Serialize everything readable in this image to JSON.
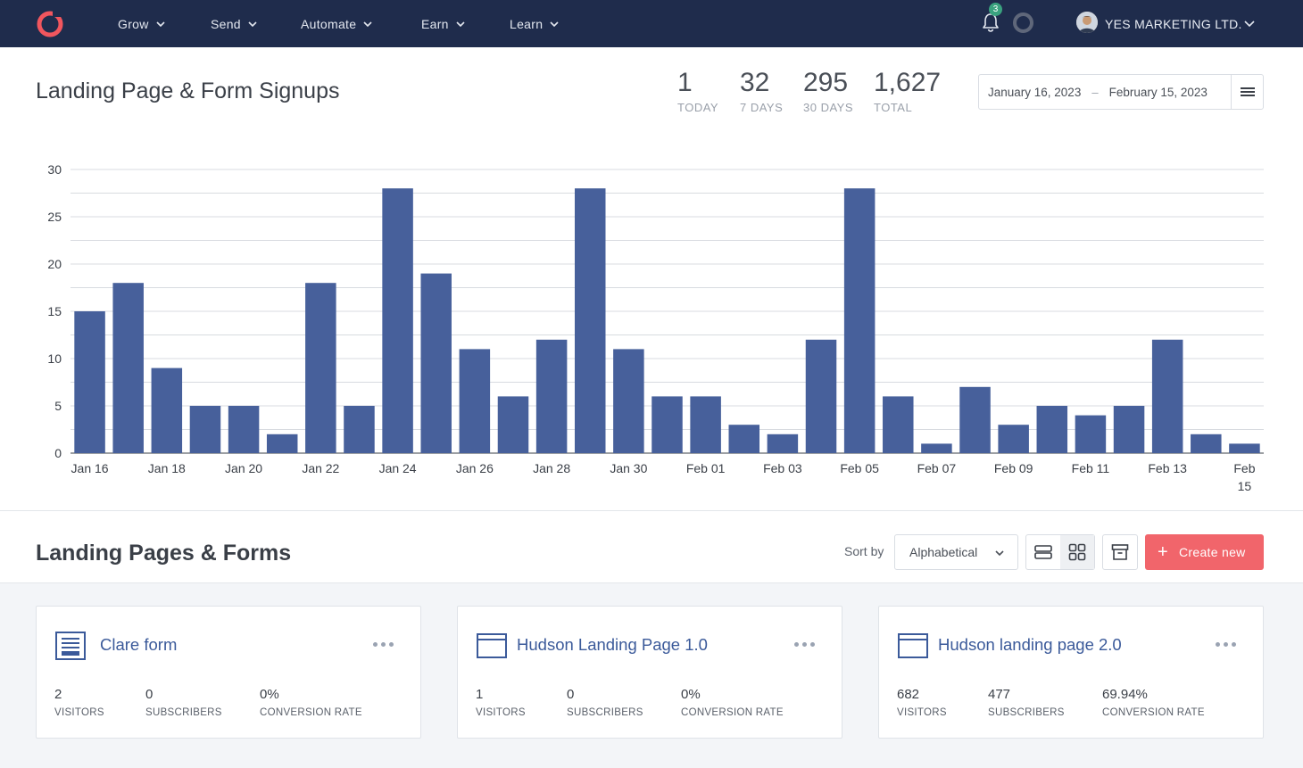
{
  "nav": {
    "items": [
      {
        "label": "Grow"
      },
      {
        "label": "Send"
      },
      {
        "label": "Automate"
      },
      {
        "label": "Earn"
      },
      {
        "label": "Learn"
      }
    ],
    "notification_count": "3",
    "account_name": "YES MARKETING LTD.",
    "brand_color": "#1f2c4c",
    "logo_color": "#f1565e"
  },
  "header": {
    "title": "Landing Page & Form Signups",
    "stats": [
      {
        "value": "1",
        "label": "TODAY"
      },
      {
        "value": "32",
        "label": "7 DAYS"
      },
      {
        "value": "295",
        "label": "30 DAYS"
      },
      {
        "value": "1,627",
        "label": "TOTAL"
      }
    ],
    "date_start": "January 16, 2023",
    "date_sep": "–",
    "date_end": "February 15, 2023"
  },
  "chart_data": {
    "type": "bar",
    "title": "",
    "xlabel": "",
    "ylabel": "",
    "ylim": [
      0,
      30
    ],
    "y_ticks": [
      0,
      5,
      10,
      15,
      20,
      25,
      30
    ],
    "grid": true,
    "bar_color": "#47609b",
    "categories": [
      "Jan 16",
      "Jan 17",
      "Jan 18",
      "Jan 19",
      "Jan 20",
      "Jan 21",
      "Jan 22",
      "Jan 23",
      "Jan 24",
      "Jan 25",
      "Jan 26",
      "Jan 27",
      "Jan 28",
      "Jan 29",
      "Jan 30",
      "Jan 31",
      "Feb 01",
      "Feb 02",
      "Feb 03",
      "Feb 04",
      "Feb 05",
      "Feb 06",
      "Feb 07",
      "Feb 08",
      "Feb 09",
      "Feb 10",
      "Feb 11",
      "Feb 12",
      "Feb 13",
      "Feb 14",
      "Feb 15"
    ],
    "values": [
      15,
      18,
      9,
      5,
      5,
      2,
      18,
      5,
      28,
      19,
      11,
      6,
      12,
      28,
      11,
      6,
      6,
      3,
      2,
      12,
      28,
      6,
      1,
      7,
      3,
      5,
      4,
      5,
      12,
      2,
      1
    ],
    "x_tick_labels": [
      "Jan 16",
      "Jan 18",
      "Jan 20",
      "Jan 22",
      "Jan 24",
      "Jan 26",
      "Jan 28",
      "Jan 30",
      "Feb 01",
      "Feb 03",
      "Feb 05",
      "Feb 07",
      "Feb 09",
      "Feb 11",
      "Feb 13",
      "Feb 15"
    ]
  },
  "section": {
    "title": "Landing Pages & Forms",
    "sort_label": "Sort by",
    "sort_value": "Alphabetical",
    "create_label": "Create new",
    "accent": "#f1656b"
  },
  "cards": [
    {
      "icon": "form-icon",
      "title": "Clare form",
      "visitors": "2",
      "visitors_label": "VISITORS",
      "subscribers": "0",
      "subscribers_label": "SUBSCRIBERS",
      "rate": "0%",
      "rate_label": "CONVERSION RATE"
    },
    {
      "icon": "landing-page-icon",
      "title": "Hudson Landing Page 1.0",
      "visitors": "1",
      "visitors_label": "VISITORS",
      "subscribers": "0",
      "subscribers_label": "SUBSCRIBERS",
      "rate": "0%",
      "rate_label": "CONVERSION RATE"
    },
    {
      "icon": "landing-page-icon",
      "title": "Hudson landing page 2.0",
      "visitors": "682",
      "visitors_label": "VISITORS",
      "subscribers": "477",
      "subscribers_label": "SUBSCRIBERS",
      "rate": "69.94%",
      "rate_label": "CONVERSION RATE"
    }
  ]
}
